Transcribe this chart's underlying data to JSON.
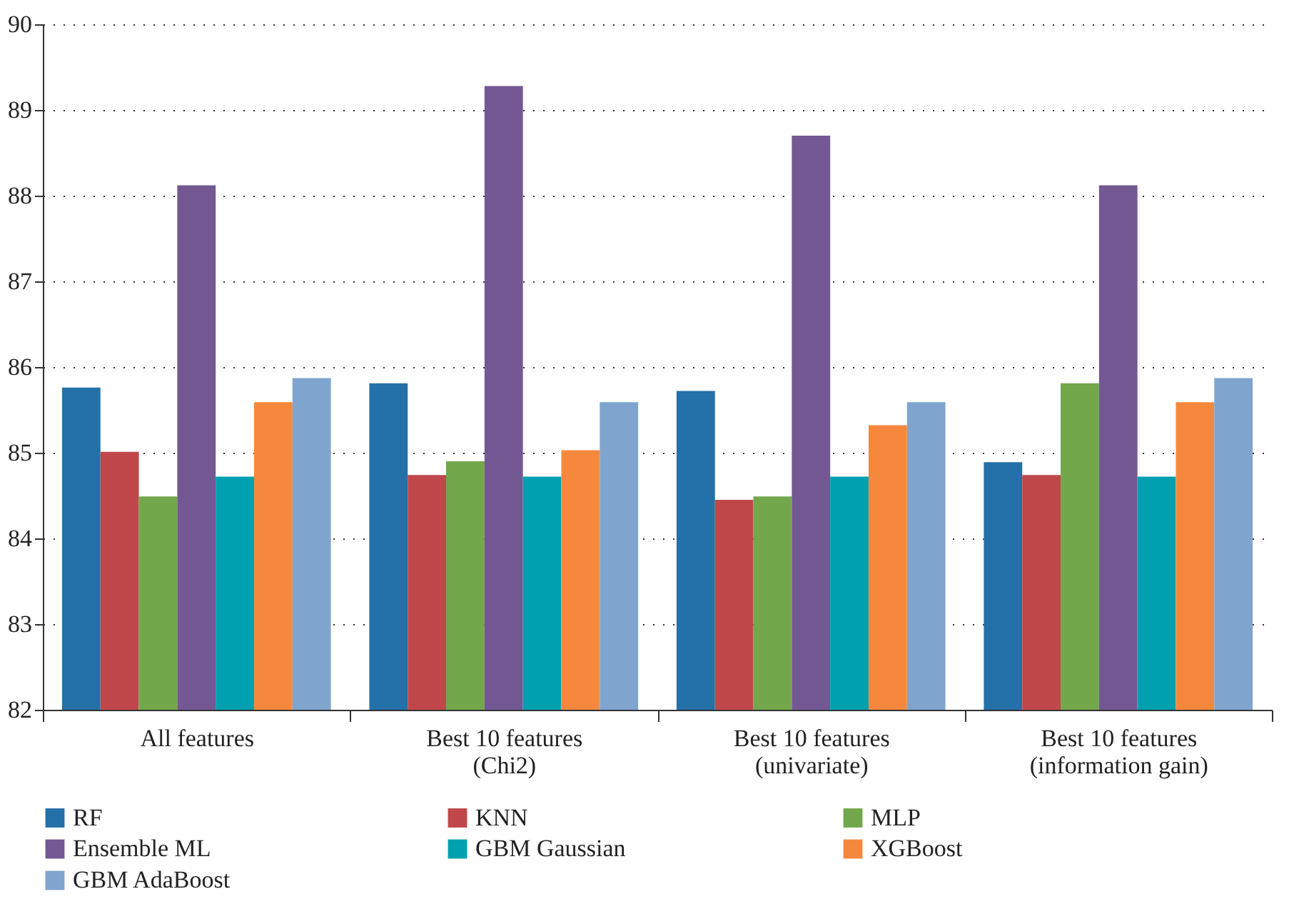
{
  "chart_data": {
    "type": "bar",
    "categories": [
      "All features",
      "Best 10 features (Chi2)",
      "Best 10 features (univariate)",
      "Best 10 features (information gain)"
    ],
    "series": [
      {
        "name": "RF",
        "color": "#2470a8",
        "values": [
          85.76,
          85.81,
          85.72,
          84.89
        ]
      },
      {
        "name": "KNN",
        "color": "#c0474a",
        "values": [
          85.01,
          84.74,
          84.45,
          84.74
        ]
      },
      {
        "name": "MLP",
        "color": "#72a74b",
        "values": [
          84.49,
          84.9,
          84.49,
          85.81
        ]
      },
      {
        "name": "Ensemble ML",
        "color": "#735894",
        "values": [
          88.12,
          89.28,
          88.7,
          88.12
        ]
      },
      {
        "name": "GBM Gaussian",
        "color": "#00a0b0",
        "values": [
          84.72,
          84.72,
          84.72,
          84.72
        ]
      },
      {
        "name": "XGBoost",
        "color": "#f5883d",
        "values": [
          85.59,
          85.03,
          85.32,
          85.59
        ]
      },
      {
        "name": "GBM AdaBoost",
        "color": "#7fa5cf",
        "values": [
          85.87,
          85.59,
          85.59,
          85.87
        ]
      }
    ],
    "ylim": [
      82,
      90
    ],
    "yticks": [
      82,
      83,
      84,
      85,
      86,
      87,
      88,
      89,
      90
    ],
    "grid": "y",
    "legend": "bottom"
  }
}
